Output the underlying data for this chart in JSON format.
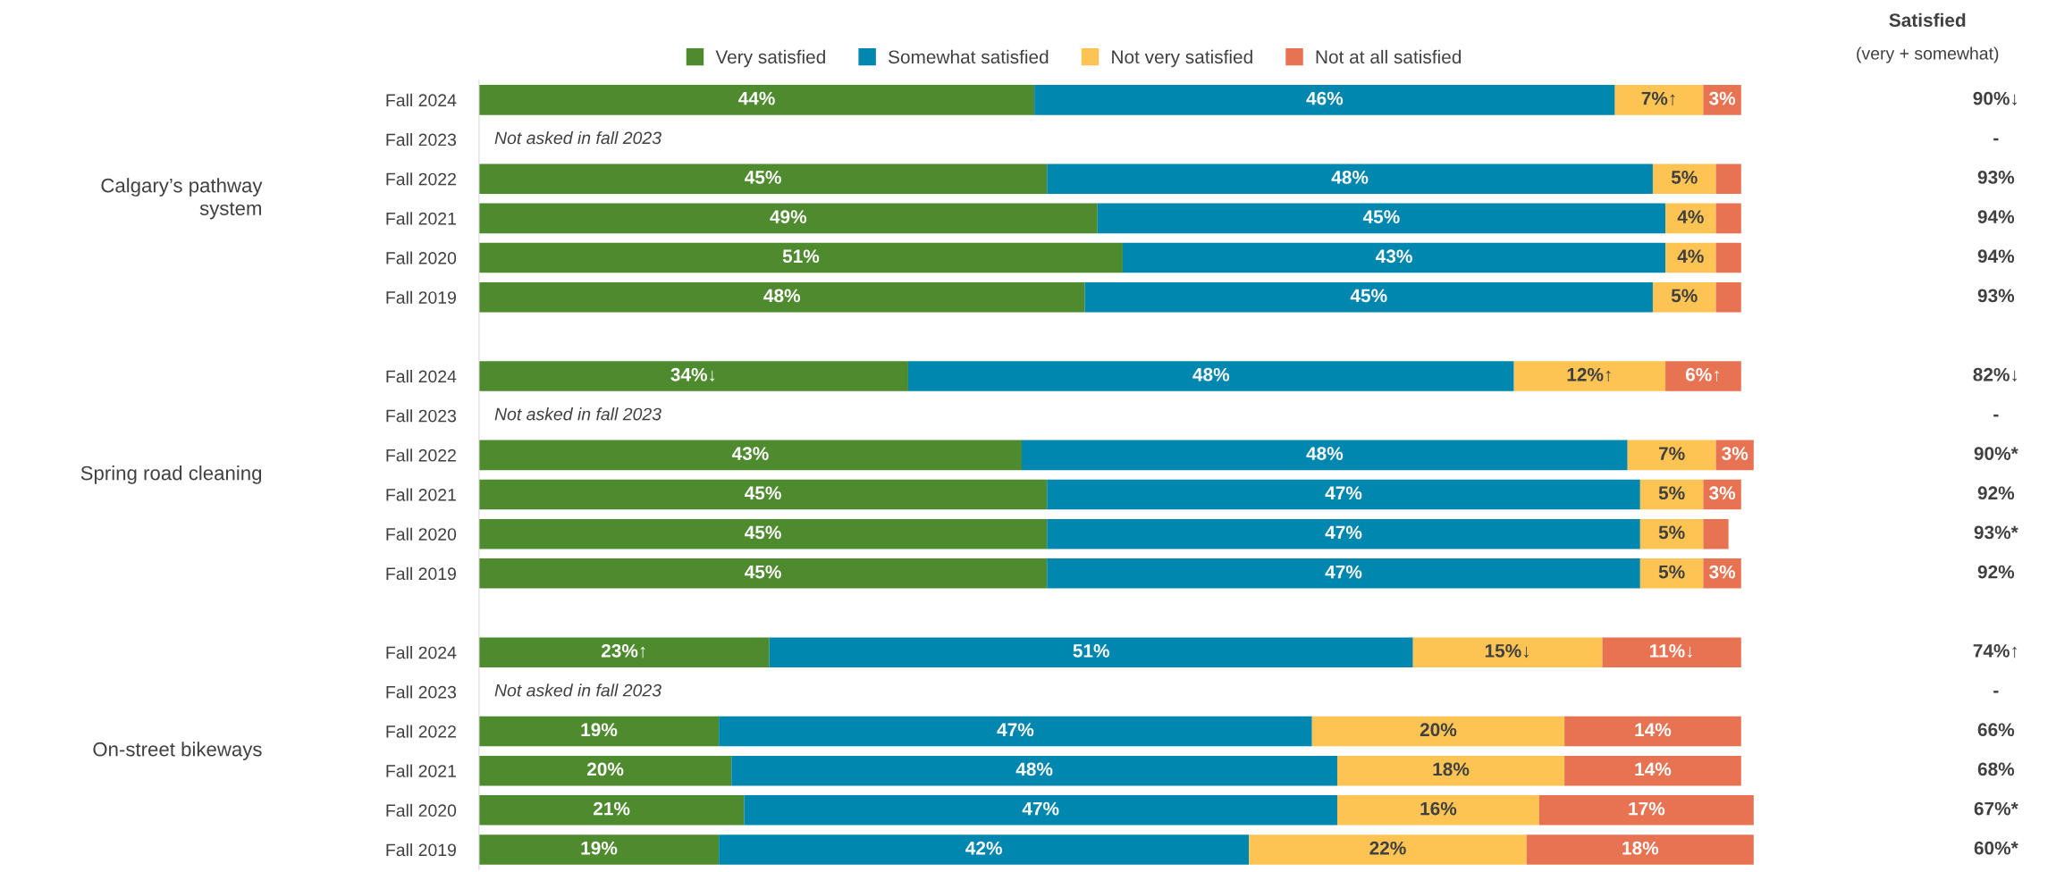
{
  "chart_data": {
    "type": "bar",
    "orientation": "horizontal",
    "stacked": true,
    "legend": "top",
    "tick_labels": "y",
    "grid": false,
    "xlim": [
      0,
      101
    ],
    "categories": [
      "Fall 2024",
      "Fall 2023",
      "Fall 2022",
      "Fall 2021",
      "Fall 2020",
      "Fall 2019",
      null,
      "Fall 2024",
      "Fall 2023",
      "Fall 2022",
      "Fall 2021",
      "Fall 2020",
      "Fall 2019",
      null,
      "Fall 2024",
      "Fall 2023",
      "Fall 2022",
      "Fall 2021",
      "Fall 2020",
      "Fall 2019"
    ],
    "series": [
      {
        "name": "Very satisfied",
        "color": "#4e8a2e",
        "values": [
          44,
          null,
          45,
          49,
          51,
          48,
          null,
          34,
          null,
          43,
          45,
          45,
          45,
          null,
          23,
          null,
          19,
          20,
          21,
          19
        ],
        "value_labels": [
          "44%",
          null,
          "45%",
          "49%",
          "51%",
          "48%",
          null,
          "34%↓",
          null,
          "43%",
          "45%",
          "45%",
          "45%",
          null,
          "23%↑",
          null,
          "19%",
          "20%",
          "21%",
          "19%"
        ]
      },
      {
        "name": "Somewhat satisfied",
        "color": "#0087b0",
        "values": [
          46,
          null,
          48,
          45,
          43,
          45,
          null,
          48,
          null,
          48,
          47,
          47,
          47,
          null,
          51,
          null,
          47,
          48,
          47,
          42
        ],
        "value_labels": [
          "46%",
          null,
          "48%",
          "45%",
          "43%",
          "45%",
          null,
          "48%",
          null,
          "48%",
          "47%",
          "47%",
          "47%",
          null,
          "51%",
          null,
          "47%",
          "48%",
          "47%",
          "42%"
        ]
      },
      {
        "name": "Not very satisfied",
        "color": "#fdc453",
        "values": [
          7,
          null,
          5,
          4,
          4,
          5,
          null,
          12,
          null,
          7,
          5,
          5,
          5,
          null,
          15,
          null,
          20,
          18,
          16,
          22
        ],
        "value_labels": [
          "7%↑",
          null,
          "5%",
          "4%",
          "4%",
          "5%",
          null,
          "12%↑",
          null,
          "7%",
          "5%",
          "5%",
          "5%",
          null,
          "15%↓",
          null,
          "20%",
          "18%",
          "16%",
          "22%"
        ]
      },
      {
        "name": "Not at all satisfied",
        "color": "#e87352",
        "values": [
          3,
          null,
          2,
          2,
          2,
          2,
          null,
          6,
          null,
          3,
          3,
          2,
          3,
          null,
          11,
          null,
          14,
          14,
          17,
          18
        ],
        "value_labels": [
          "3%",
          null,
          null,
          null,
          null,
          null,
          null,
          "6%↑",
          null,
          "3%",
          "3%",
          null,
          "3%",
          null,
          "11%↓",
          null,
          "14%",
          "14%",
          "17%",
          "18%"
        ]
      }
    ],
    "annotations": [
      "Calgary’s pathway\nsystem",
      "Spring road cleaning",
      "On-street bikeways",
      "Not asked in fall 2023",
      "Not asked in fall 2023",
      "Not asked in fall 2023",
      "Satisfied",
      "(very + somewhat)",
      "90%↓",
      "-",
      "93%",
      "94%",
      "94%",
      "93%",
      "82%↓",
      "-",
      "90%*",
      "92%",
      "93%*",
      "92%",
      "74%↑",
      "-",
      "66%",
      "68%",
      "67%*",
      "60%*"
    ]
  }
}
